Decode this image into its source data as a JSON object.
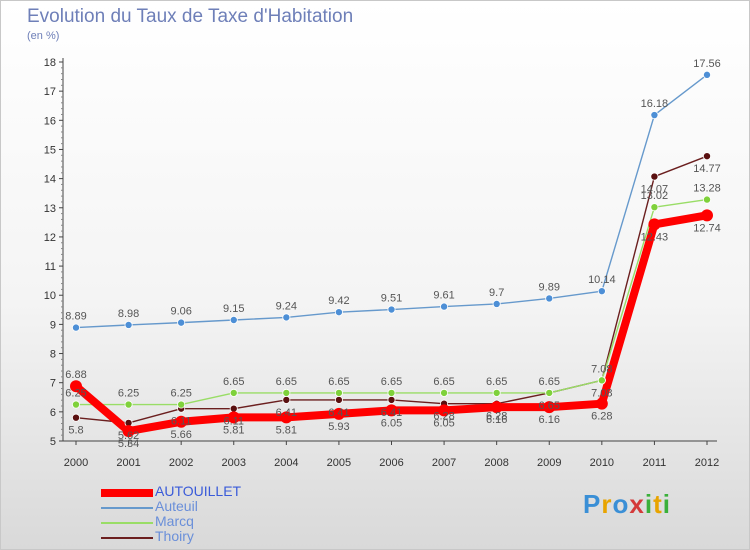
{
  "header": {
    "title": "Evolution du Taux de Taxe d'Habitation",
    "unit": "(en %)"
  },
  "logo": {
    "letters": [
      "P",
      "r",
      "o",
      "x",
      "i",
      "t",
      "i"
    ],
    "colors": [
      "#3a8fd6",
      "#e8a400",
      "#3a8fd6",
      "#d43a3a",
      "#3ab03a",
      "#e8a400",
      "#3ab03a"
    ]
  },
  "chart_data": {
    "type": "line",
    "title": "Evolution du Taux de Taxe d'Habitation",
    "ylabel": "(en %)",
    "xlabel": "",
    "x": [
      "2000",
      "2001",
      "2002",
      "2003",
      "2004",
      "2005",
      "2006",
      "2007",
      "2008",
      "2009",
      "2010",
      "2011",
      "2012"
    ],
    "ylim": [
      5,
      18
    ],
    "yticks": [
      "5",
      "6",
      "7",
      "8",
      "9",
      "10",
      "11",
      "12",
      "13",
      "14",
      "15",
      "16",
      "17",
      "18"
    ],
    "grid": false,
    "legend_position": "bottom-left",
    "series": [
      {
        "name": "AUTOUILLET",
        "color": "#ff0000",
        "values": [
          6.88,
          5.34,
          5.66,
          5.81,
          5.81,
          5.93,
          6.05,
          6.05,
          6.16,
          6.16,
          6.28,
          12.43,
          12.74
        ],
        "labels": [
          "6.88",
          "5.34",
          "5.66",
          "5.81",
          "5.81",
          "5.93",
          "6.05",
          "6.05",
          "6.16",
          "6.16",
          "6.28",
          "12.43",
          "12.74"
        ]
      },
      {
        "name": "Auteuil",
        "color": "#6699cc",
        "values": [
          8.89,
          8.98,
          9.06,
          9.15,
          9.24,
          9.42,
          9.51,
          9.61,
          9.7,
          9.89,
          10.14,
          16.18,
          17.56
        ],
        "labels": [
          "8.89",
          "8.98",
          "9.06",
          "9.15",
          "9.24",
          "9.42",
          "9.51",
          "9.61",
          "9.7",
          "9.89",
          "10.14",
          "16.18",
          "17.56"
        ]
      },
      {
        "name": "Marcq",
        "color": "#99dd66",
        "values": [
          6.25,
          6.25,
          6.25,
          6.65,
          6.65,
          6.65,
          6.65,
          6.65,
          6.65,
          6.65,
          7.08,
          13.02,
          13.28
        ],
        "labels": [
          "6.25",
          "6.25",
          "6.25",
          "6.65",
          "6.65",
          "6.65",
          "6.65",
          "6.65",
          "6.65",
          "6.65",
          "7.08",
          "13.02",
          "13.28"
        ]
      },
      {
        "name": "Thoiry",
        "color": "#6b1f1f",
        "values": [
          5.8,
          5.62,
          6.11,
          6.11,
          6.41,
          6.41,
          6.41,
          6.28,
          6.28,
          6.65,
          7.08,
          14.07,
          14.77
        ],
        "labels": [
          "5.8",
          "5.62",
          "6.11",
          "6.11",
          "6.41",
          "6.41",
          "6.41",
          "6.28",
          "6.28",
          "6.65",
          "7.08",
          "14.07",
          "14.77"
        ]
      }
    ]
  }
}
